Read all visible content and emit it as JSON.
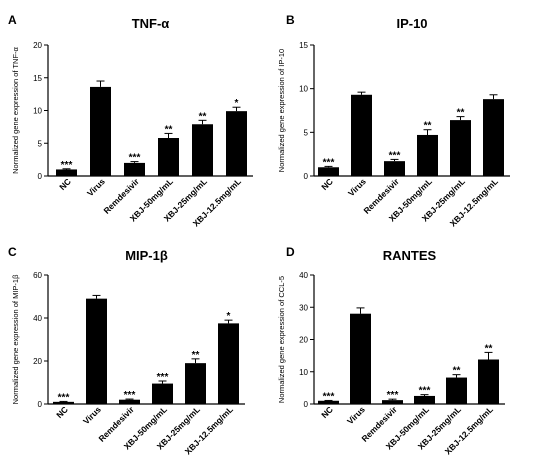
{
  "chart_data": [
    {
      "panel": "A",
      "type": "bar",
      "title": "TNF-α",
      "ylabel": "Normalized gene expression of TNF-α",
      "xlabel": "",
      "ylim": [
        0,
        20
      ],
      "yticks": [
        0,
        5,
        10,
        15,
        20
      ],
      "categories": [
        "NC",
        "Virus",
        "Remdesivir",
        "XBJ-50mg/mL",
        "XBJ-25mg/mL",
        "XBJ-12.5mg/mL"
      ],
      "values": [
        1.0,
        13.6,
        2.0,
        5.8,
        7.9,
        9.9
      ],
      "errors": [
        0.1,
        0.9,
        0.2,
        0.7,
        0.6,
        0.6
      ],
      "significance": [
        "***",
        "",
        "***",
        "**",
        "**",
        "*"
      ],
      "bar_color": "#000000",
      "grid": false
    },
    {
      "panel": "B",
      "type": "bar",
      "title": "IP-10",
      "ylabel": "Normalized gene expression of IP-10",
      "xlabel": "",
      "ylim": [
        0,
        15
      ],
      "yticks": [
        0,
        5,
        10,
        15
      ],
      "categories": [
        "NC",
        "Virus",
        "Remdesivir",
        "XBJ-50mg/mL",
        "XBJ-25mg/mL",
        "XBJ-12.5mg/mL"
      ],
      "values": [
        1.0,
        9.3,
        1.7,
        4.7,
        6.4,
        8.8
      ],
      "errors": [
        0.1,
        0.3,
        0.2,
        0.6,
        0.4,
        0.5
      ],
      "significance": [
        "***",
        "",
        "***",
        "**",
        "**",
        ""
      ],
      "bar_color": "#000000",
      "grid": false
    },
    {
      "panel": "C",
      "type": "bar",
      "title": "MIP-1β",
      "ylabel": "Normalized gene expression of MIP-1β",
      "xlabel": "",
      "ylim": [
        0,
        60
      ],
      "yticks": [
        0,
        20,
        40,
        60
      ],
      "categories": [
        "NC",
        "Virus",
        "Remdesivir",
        "XBJ-50mg/mL",
        "XBJ-25mg/mL",
        "XBJ-12.5mg/mL"
      ],
      "values": [
        1.0,
        49.0,
        2.0,
        9.5,
        19.0,
        37.5
      ],
      "errors": [
        0.2,
        1.5,
        0.3,
        1.2,
        2.0,
        1.5
      ],
      "significance": [
        "***",
        "",
        "***",
        "***",
        "**",
        "*"
      ],
      "bar_color": "#000000",
      "grid": false
    },
    {
      "panel": "D",
      "type": "bar",
      "title": "RANTES",
      "ylabel": "Normalized gene expression of CCL-5",
      "xlabel": "",
      "ylim": [
        0,
        40
      ],
      "yticks": [
        0,
        10,
        20,
        30,
        40
      ],
      "categories": [
        "NC",
        "Virus",
        "Remdesivir",
        "XBJ-50mg/mL",
        "XBJ-25mg/mL",
        "XBJ-12.5mg/mL"
      ],
      "values": [
        1.0,
        28.0,
        1.2,
        2.5,
        8.2,
        13.8
      ],
      "errors": [
        0.1,
        1.8,
        0.3,
        0.4,
        0.9,
        2.2
      ],
      "significance": [
        "***",
        "",
        "***",
        "***",
        "**",
        "**"
      ],
      "bar_color": "#000000",
      "grid": false
    }
  ]
}
